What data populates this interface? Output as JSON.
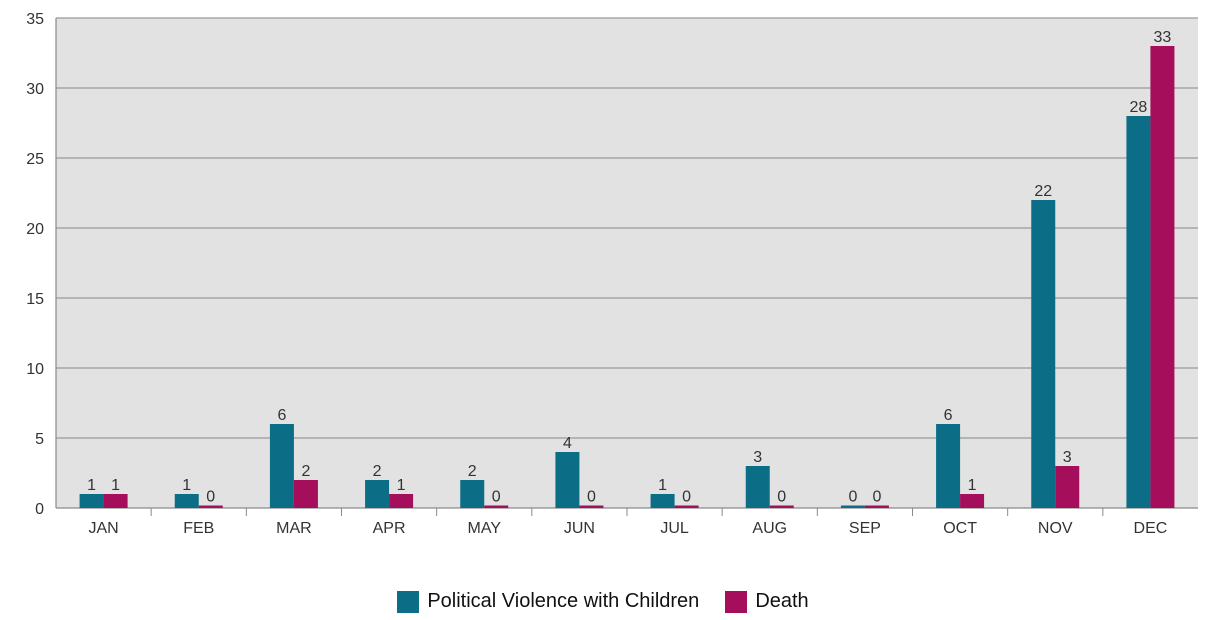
{
  "chart_data": {
    "type": "bar",
    "categories": [
      "JAN",
      "FEB",
      "MAR",
      "APR",
      "MAY",
      "JUN",
      "JUL",
      "AUG",
      "SEP",
      "OCT",
      "NOV",
      "DEC"
    ],
    "series": [
      {
        "name": "Political Violence with Children",
        "color": "#0b6e86",
        "values": [
          1,
          1,
          6,
          2,
          2,
          4,
          1,
          3,
          0,
          6,
          22,
          28
        ]
      },
      {
        "name": "Death",
        "color": "#a50e5a",
        "values": [
          1,
          0,
          2,
          1,
          0,
          0,
          0,
          0,
          0,
          1,
          3,
          33
        ]
      }
    ],
    "ylim": [
      0,
      35
    ],
    "yticks": [
      0,
      5,
      10,
      15,
      20,
      25,
      30,
      35
    ],
    "grid": true,
    "plot_background": "#e2e2e2",
    "legend_position": "bottom-center"
  }
}
